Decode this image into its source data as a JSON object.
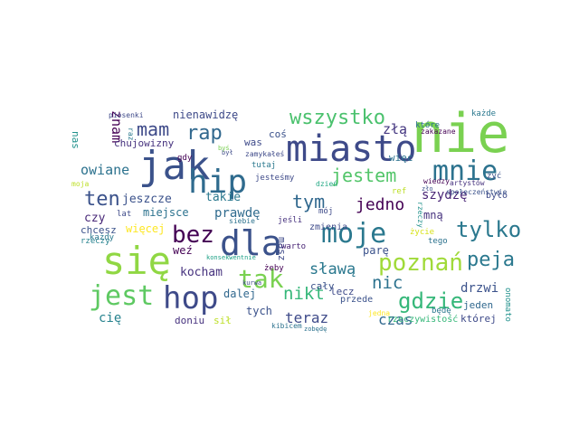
{
  "words": [
    {
      "text": "nie",
      "color": "#7ad151"
    },
    {
      "text": "jak",
      "color": "#3b528b"
    },
    {
      "text": "się",
      "color": "#90d743"
    },
    {
      "text": "miasto",
      "color": "#3e4a89"
    },
    {
      "text": "hip",
      "color": "#2f6b8e"
    },
    {
      "text": "dla",
      "color": "#3b528b"
    },
    {
      "text": "hop",
      "color": "#3e4a89"
    },
    {
      "text": "moje",
      "color": "#2a788e"
    },
    {
      "text": "mnie",
      "color": "#2c728e"
    },
    {
      "text": "jest",
      "color": "#5ec962"
    },
    {
      "text": "tak",
      "color": "#7ad151"
    },
    {
      "text": "poznań",
      "color": "#a0da39"
    },
    {
      "text": "bez",
      "color": "#440154"
    },
    {
      "text": "tylko",
      "color": "#2a788e"
    },
    {
      "text": "gdzie",
      "color": "#35b779"
    },
    {
      "text": "peja",
      "color": "#2a788e"
    },
    {
      "text": "ten",
      "color": "#3b528b"
    },
    {
      "text": "rap",
      "color": "#31688e"
    },
    {
      "text": "mam",
      "color": "#3e4a89"
    },
    {
      "text": "wszystko",
      "color": "#4ac16d"
    },
    {
      "text": "jestem",
      "color": "#52c569"
    },
    {
      "text": "tym",
      "color": "#31688e"
    },
    {
      "text": "nikt",
      "color": "#35b779"
    },
    {
      "text": "nic",
      "color": "#2c728e"
    },
    {
      "text": "jedno",
      "color": "#440154"
    },
    {
      "text": "sławą",
      "color": "#2a788e"
    },
    {
      "text": "teraz",
      "color": "#3e4a89"
    },
    {
      "text": "owiane",
      "color": "#2c728e"
    },
    {
      "text": "czas",
      "color": "#31688e"
    },
    {
      "text": "znam",
      "color": "#440154"
    },
    {
      "text": "złą",
      "color": "#453781"
    },
    {
      "text": "szydzę",
      "color": "#482475"
    },
    {
      "text": "prawdę",
      "color": "#2f6b8e"
    },
    {
      "text": "kocham",
      "color": "#46327e"
    },
    {
      "text": "drzwi",
      "color": "#3b528b"
    },
    {
      "text": "cię",
      "color": "#26828e"
    },
    {
      "text": "nienawidzę",
      "color": "#3e4a89"
    },
    {
      "text": "jeszcze",
      "color": "#3b528b"
    },
    {
      "text": "takie",
      "color": "#2a788e"
    },
    {
      "text": "miejsce",
      "color": "#2c728e"
    },
    {
      "text": "czy",
      "color": "#482878"
    },
    {
      "text": "więcej",
      "color": "#fde725"
    },
    {
      "text": "weź",
      "color": "#440154"
    },
    {
      "text": "dalej",
      "color": "#31688e"
    },
    {
      "text": "tych",
      "color": "#3b528b"
    },
    {
      "text": "masz",
      "color": "#3e4a89"
    },
    {
      "text": "parę",
      "color": "#3b528b"
    },
    {
      "text": "mną",
      "color": "#46327e"
    },
    {
      "text": "jeden",
      "color": "#31688e"
    },
    {
      "text": "której",
      "color": "#3e4a89"
    },
    {
      "text": "lecz",
      "color": "#3e4a89"
    },
    {
      "text": "cały",
      "color": "#3b528b"
    },
    {
      "text": "doniu",
      "color": "#46327e"
    },
    {
      "text": "sił",
      "color": "#bddf26"
    },
    {
      "text": "chujowizny",
      "color": "#46327e"
    },
    {
      "text": "nas",
      "color": "#21918c"
    },
    {
      "text": "was",
      "color": "#3e4a89"
    },
    {
      "text": "coś",
      "color": "#3b528b"
    },
    {
      "text": "więc",
      "color": "#2c728e"
    },
    {
      "text": "gdy",
      "color": "#440154"
    },
    {
      "text": "chcesz",
      "color": "#3b528b"
    },
    {
      "text": "rzeczy",
      "color": "#26828e"
    },
    {
      "text": "każdy",
      "color": "#2a788e"
    },
    {
      "text": "ref",
      "color": "#bddf26"
    },
    {
      "text": "zmienia",
      "color": "#3e4a89"
    },
    {
      "text": "życie",
      "color": "#d8e219"
    },
    {
      "text": "jeśli",
      "color": "#46327e"
    },
    {
      "text": "lat",
      "color": "#3e4a89"
    },
    {
      "text": "było",
      "color": "#3e4a89"
    },
    {
      "text": "żyć",
      "color": "#3b528b"
    },
    {
      "text": "tutaj",
      "color": "#2a788e"
    },
    {
      "text": "które",
      "color": "#2c728e"
    },
    {
      "text": "każde",
      "color": "#2a788e"
    },
    {
      "text": "będę",
      "color": "#2a788e"
    },
    {
      "text": "przede",
      "color": "#3b528b"
    },
    {
      "text": "tego",
      "color": "#2c728e"
    },
    {
      "text": "warto",
      "color": "#482475"
    },
    {
      "text": "żeby",
      "color": "#440154"
    },
    {
      "text": "mój",
      "color": "#3e4a89"
    },
    {
      "text": "kibicem",
      "color": "#2c728e"
    },
    {
      "text": "onomato",
      "color": "#21918c"
    },
    {
      "text": "rzeczywistość",
      "color": "#35b779"
    },
    {
      "text": "jesteśmy",
      "color": "#3e4a89"
    },
    {
      "text": "zamykałeś",
      "color": "#3e4a89"
    },
    {
      "text": "piosenki",
      "color": "#3e4a89"
    },
    {
      "text": "zakazane",
      "color": "#440154"
    },
    {
      "text": "wiedzy",
      "color": "#440154"
    },
    {
      "text": "artystów",
      "color": "#46327e"
    },
    {
      "text": "społeczeństwie",
      "color": "#3b528b"
    },
    {
      "text": "siebie",
      "color": "#2c728e"
    },
    {
      "text": "dzień",
      "color": "#22a884"
    },
    {
      "text": "moja",
      "color": "#bddf26"
    },
    {
      "text": "jedna",
      "color": "#fde725"
    },
    {
      "text": "konsekwentnie",
      "color": "#1fa187"
    },
    {
      "text": "kurwa",
      "color": "#3e4a89"
    },
    {
      "text": "zobędę",
      "color": "#2c728e"
    },
    {
      "text": "rzeczy",
      "color": "#21918c"
    },
    {
      "text": "raz",
      "color": "#2a788e"
    },
    {
      "text": "był",
      "color": "#3e4a89"
    },
    {
      "text": "zło",
      "color": "#3b528b"
    },
    {
      "text": "byś",
      "color": "#7ad151"
    }
  ]
}
